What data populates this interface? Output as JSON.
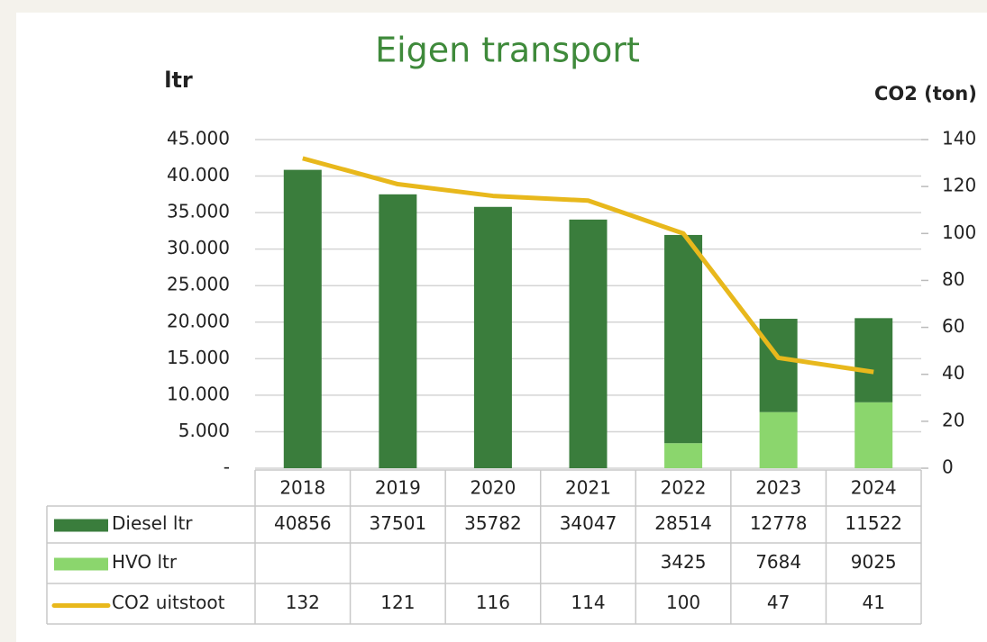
{
  "chart_data": {
    "type": "bar",
    "stacked": true,
    "title": "Eigen transport",
    "ylabel": "ltr",
    "y2label": "CO2 (ton)",
    "categories": [
      "2018",
      "2019",
      "2020",
      "2021",
      "2022",
      "2023",
      "2024"
    ],
    "series": [
      {
        "name": "Diesel ltr",
        "color": "#3a7d3c",
        "values": [
          40856,
          37501,
          35782,
          34047,
          28514,
          12778,
          11522
        ]
      },
      {
        "name": "HVO ltr",
        "color": "#8bd66d",
        "values": [
          null,
          null,
          null,
          null,
          3425,
          7684,
          9025
        ]
      },
      {
        "name": "CO2 uitstoot",
        "color": "#e8b81c",
        "type": "line",
        "axis": "y2",
        "values": [
          132,
          121,
          116,
          114,
          100,
          47,
          41
        ]
      }
    ],
    "ylim": [
      0,
      45000
    ],
    "yticks": [
      {
        "value": 0,
        "label": "-"
      },
      {
        "value": 5000,
        "label": "5.000"
      },
      {
        "value": 10000,
        "label": "10.000"
      },
      {
        "value": 15000,
        "label": "15.000"
      },
      {
        "value": 20000,
        "label": "20.000"
      },
      {
        "value": 25000,
        "label": "25.000"
      },
      {
        "value": 30000,
        "label": "30.000"
      },
      {
        "value": 35000,
        "label": "35.000"
      },
      {
        "value": 40000,
        "label": "40.000"
      },
      {
        "value": 45000,
        "label": "45.000"
      }
    ],
    "y2lim": [
      0,
      140
    ],
    "y2ticks": [
      0,
      20,
      40,
      60,
      80,
      100,
      120,
      140
    ],
    "grid": true
  }
}
